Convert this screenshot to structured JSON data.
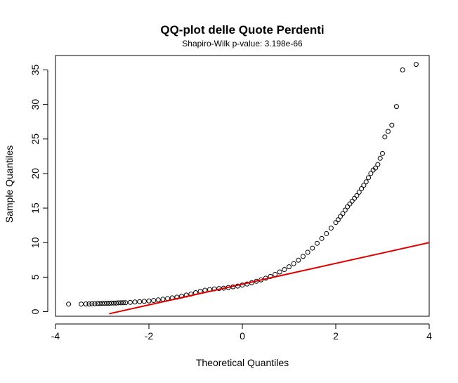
{
  "chart_data": {
    "type": "scatter",
    "title": "QQ-plot delle Quote Perdenti",
    "subtitle": "Shapiro-Wilk p-value: 3.198e-66",
    "xlabel": "Theoretical Quantiles",
    "ylabel": "Sample Quantiles",
    "xlim": [
      -4,
      4
    ],
    "ylim": [
      0,
      36
    ],
    "x_ticks": [
      -4,
      -2,
      0,
      2,
      4
    ],
    "y_ticks": [
      0,
      5,
      10,
      15,
      20,
      25,
      30,
      35
    ],
    "x_tick_labels": [
      "-4",
      "-2",
      "0",
      "2",
      "4"
    ],
    "y_tick_labels": [
      "0",
      "5",
      "10",
      "15",
      "20",
      "25",
      "30",
      "35"
    ],
    "grid": false,
    "colors": {
      "points": "#000000",
      "reference_line": "#e00000"
    },
    "reference_line": {
      "x": [
        -2.85,
        4.0
      ],
      "y": [
        -0.3,
        10.0
      ]
    },
    "points": {
      "x": [
        -3.72,
        -3.45,
        -3.35,
        -3.28,
        -3.22,
        -3.16,
        -3.1,
        -3.05,
        -3.0,
        -2.95,
        -2.9,
        -2.85,
        -2.8,
        -2.75,
        -2.7,
        -2.65,
        -2.6,
        -2.55,
        -2.5,
        -2.4,
        -2.3,
        -2.2,
        -2.1,
        -2.0,
        -1.9,
        -1.8,
        -1.7,
        -1.6,
        -1.5,
        -1.4,
        -1.3,
        -1.2,
        -1.1,
        -1.0,
        -0.9,
        -0.8,
        -0.7,
        -0.6,
        -0.5,
        -0.4,
        -0.3,
        -0.2,
        -0.1,
        0.0,
        0.1,
        0.2,
        0.3,
        0.4,
        0.5,
        0.6,
        0.7,
        0.8,
        0.9,
        1.0,
        1.1,
        1.2,
        1.3,
        1.4,
        1.5,
        1.6,
        1.7,
        1.8,
        1.9,
        2.0,
        2.05,
        2.1,
        2.15,
        2.2,
        2.25,
        2.3,
        2.35,
        2.4,
        2.45,
        2.5,
        2.55,
        2.6,
        2.65,
        2.7,
        2.75,
        2.8,
        2.85,
        2.9,
        2.95,
        3.0,
        3.05,
        3.12,
        3.2,
        3.3,
        3.43,
        3.72
      ],
      "y": [
        1.1,
        1.1,
        1.12,
        1.12,
        1.15,
        1.15,
        1.18,
        1.18,
        1.2,
        1.2,
        1.22,
        1.22,
        1.25,
        1.25,
        1.25,
        1.28,
        1.28,
        1.3,
        1.3,
        1.35,
        1.4,
        1.45,
        1.5,
        1.55,
        1.62,
        1.7,
        1.8,
        1.9,
        2.0,
        2.1,
        2.25,
        2.4,
        2.55,
        2.75,
        2.95,
        3.1,
        3.2,
        3.3,
        3.35,
        3.4,
        3.5,
        3.6,
        3.7,
        3.85,
        4.0,
        4.2,
        4.4,
        4.6,
        4.85,
        5.1,
        5.4,
        5.75,
        6.1,
        6.5,
        6.95,
        7.45,
        8.0,
        8.6,
        9.2,
        9.9,
        10.6,
        11.3,
        12.1,
        12.9,
        13.3,
        13.8,
        14.2,
        14.7,
        15.2,
        15.6,
        16.0,
        16.4,
        16.8,
        17.3,
        17.8,
        18.3,
        18.8,
        19.4,
        20.0,
        20.5,
        20.8,
        21.3,
        22.2,
        22.9,
        25.3,
        26.1,
        27.0,
        29.7,
        35.0,
        35.8
      ]
    }
  }
}
